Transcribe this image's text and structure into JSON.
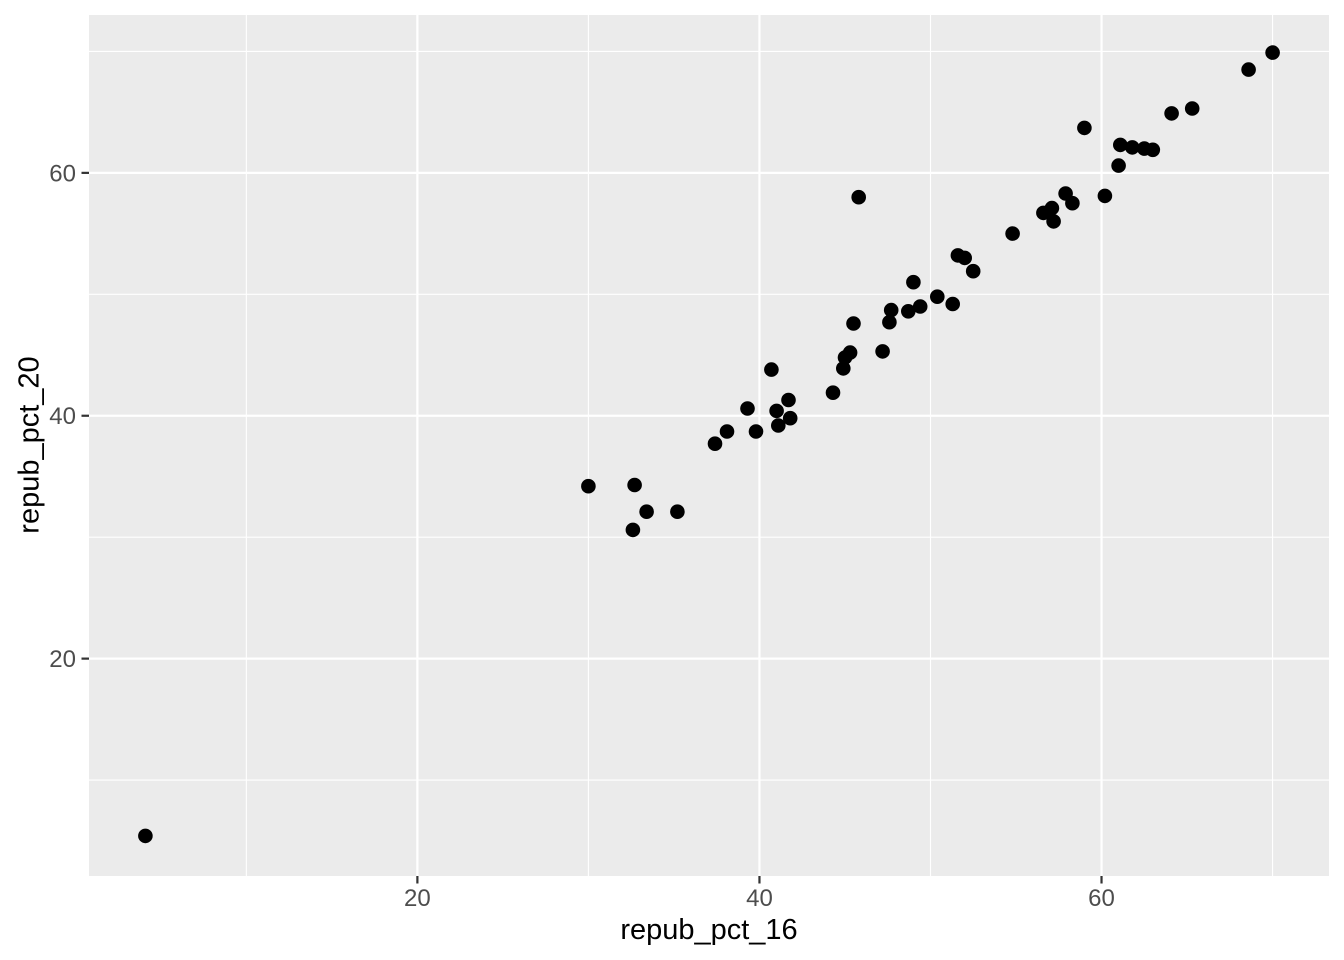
{
  "chart_data": {
    "type": "scatter",
    "title": "",
    "xlabel": "repub_pct_16",
    "ylabel": "repub_pct_20",
    "xlim": [
      0.8,
      73.3
    ],
    "ylim": [
      2.1,
      73.0
    ],
    "x_major_ticks": [
      20,
      40,
      60
    ],
    "y_major_ticks": [
      20,
      40,
      60
    ],
    "x_minor_gridlines": [
      10,
      30,
      50,
      70
    ],
    "y_minor_gridlines": [
      10,
      30,
      50,
      70
    ],
    "grid": "on",
    "legend": "none",
    "panel_bg_color": "#EBEBEB",
    "grid_color": "#FFFFFF",
    "point_color": "#000000",
    "tick_mark_color": "#333333",
    "tick_label_color": "#4D4D4D",
    "axis_title_color": "#000000",
    "points": [
      [
        4.1,
        5.4
      ],
      [
        30.0,
        34.2
      ],
      [
        32.7,
        34.3
      ],
      [
        33.4,
        32.1
      ],
      [
        35.2,
        32.1
      ],
      [
        32.6,
        30.6
      ],
      [
        37.4,
        37.7
      ],
      [
        38.1,
        38.7
      ],
      [
        39.8,
        38.7
      ],
      [
        39.3,
        40.6
      ],
      [
        41.0,
        40.4
      ],
      [
        41.1,
        39.2
      ],
      [
        41.8,
        39.8
      ],
      [
        41.7,
        41.3
      ],
      [
        40.7,
        43.8
      ],
      [
        44.3,
        41.9
      ],
      [
        45.0,
        44.8
      ],
      [
        44.9,
        43.9
      ],
      [
        45.3,
        45.2
      ],
      [
        45.5,
        47.6
      ],
      [
        47.2,
        45.3
      ],
      [
        47.6,
        47.7
      ],
      [
        47.7,
        48.7
      ],
      [
        48.7,
        48.6
      ],
      [
        49.4,
        49.0
      ],
      [
        49.0,
        51.0
      ],
      [
        50.4,
        49.8
      ],
      [
        51.3,
        49.2
      ],
      [
        51.6,
        53.2
      ],
      [
        52.0,
        53.0
      ],
      [
        52.5,
        51.9
      ],
      [
        54.8,
        55.0
      ],
      [
        45.8,
        58.0
      ],
      [
        56.6,
        56.7
      ],
      [
        57.1,
        57.1
      ],
      [
        57.2,
        56.0
      ],
      [
        57.9,
        58.3
      ],
      [
        58.3,
        57.5
      ],
      [
        60.2,
        58.1
      ],
      [
        61.0,
        60.6
      ],
      [
        59.0,
        63.7
      ],
      [
        61.1,
        62.3
      ],
      [
        61.8,
        62.1
      ],
      [
        62.5,
        62.0
      ],
      [
        63.0,
        61.9
      ],
      [
        64.1,
        64.9
      ],
      [
        65.3,
        65.3
      ],
      [
        68.6,
        68.5
      ],
      [
        70.0,
        69.9
      ]
    ]
  }
}
